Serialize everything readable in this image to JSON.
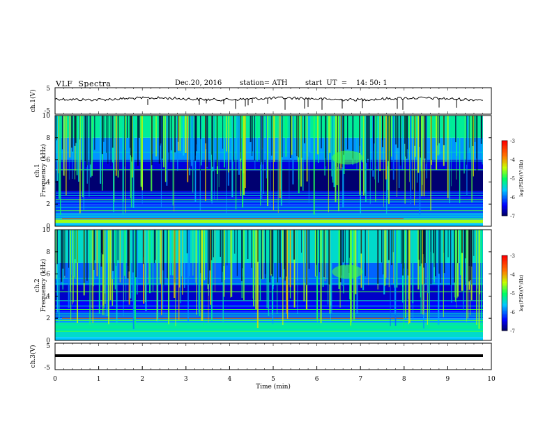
{
  "header": {
    "title": "VLF  Spectra",
    "date": "Dec.20, 2016",
    "station": "station= ATH",
    "start": "start  UT  =    14: 50: 1"
  },
  "chart_data": [
    {
      "type": "line",
      "ylabel": "ch.1(V)",
      "ylim": [
        -5,
        5
      ],
      "yticks": [
        "5",
        "-5"
      ],
      "xlim": [
        0,
        10
      ],
      "description_values": "noisy trace near -0.5 V with downward spikes"
    },
    {
      "type": "heatmap",
      "ylabel": "ch.1\nFrequency (kHz)",
      "ylim": [
        0,
        10
      ],
      "yticks": [
        "0",
        "2",
        "4",
        "6",
        "8",
        "10"
      ],
      "xlim": [
        0,
        10
      ],
      "colorbar": {
        "label": "log(PSD)(V²/Hz)",
        "ticks": [
          "-3",
          "-4",
          "-5",
          "-6",
          "-7"
        ],
        "range": [
          -7,
          -3
        ]
      }
    },
    {
      "type": "heatmap",
      "ylabel": "ch.2\nFrequency (kHz)",
      "ylim": [
        0,
        10
      ],
      "yticks": [
        "0",
        "2",
        "4",
        "6",
        "8",
        "10"
      ],
      "xlim": [
        0,
        10
      ],
      "colorbar": {
        "label": "log(PSD)(V²/Hz)",
        "ticks": [
          "-3",
          "-4",
          "-5",
          "-6",
          "-7"
        ],
        "range": [
          -7,
          -3
        ]
      }
    },
    {
      "type": "line",
      "ylabel": "ch.3(V)",
      "ylim": [
        -5,
        5
      ],
      "yticks": [
        "5",
        "-5"
      ],
      "xlim": [
        0,
        10
      ],
      "xlabel": "Time  (min)",
      "xticks": [
        "0",
        "1",
        "2",
        "3",
        "4",
        "5",
        "6",
        "7",
        "8",
        "9",
        "10"
      ]
    }
  ],
  "colors": {
    "black": "#000000",
    "navy": "#000066",
    "blue": "#0000ff",
    "cyan": "#00c8ff",
    "green": "#00ff60",
    "yellow": "#e6ff00",
    "red": "#ff0000"
  }
}
